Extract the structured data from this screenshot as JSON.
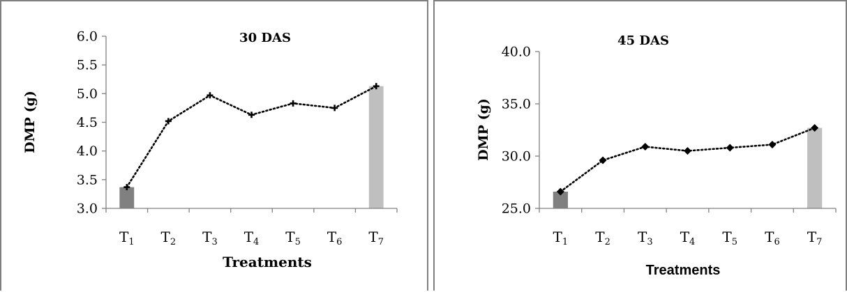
{
  "chart_data": [
    {
      "type": "line",
      "title": "30 DAS",
      "xlabel": "Treatments",
      "ylabel": "DMP (g)",
      "categories": [
        "T1",
        "T2",
        "T3",
        "T4",
        "T5",
        "T6",
        "T7"
      ],
      "category_labels": [
        {
          "base": "T",
          "sub": "1"
        },
        {
          "base": "T",
          "sub": "2"
        },
        {
          "base": "T",
          "sub": "3"
        },
        {
          "base": "T",
          "sub": "4"
        },
        {
          "base": "T",
          "sub": "5"
        },
        {
          "base": "T",
          "sub": "6"
        },
        {
          "base": "T",
          "sub": "7"
        }
      ],
      "series": [
        {
          "values": [
            3.37,
            4.52,
            4.97,
            4.63,
            4.83,
            4.75,
            5.13
          ],
          "marker": "plus",
          "line_style": "dotted"
        }
      ],
      "highlight_bars": [
        {
          "category_index": 0,
          "value": 3.37,
          "color": "#808080"
        },
        {
          "category_index": 6,
          "value": 5.13,
          "color": "#bfbfbf"
        }
      ],
      "ylim": [
        3.0,
        6.0
      ],
      "yticks": [
        "3.0",
        "3.5",
        "4.0",
        "4.5",
        "5.0",
        "5.5",
        "6.0"
      ],
      "grid": false,
      "legend": "none"
    },
    {
      "type": "line",
      "title": "45 DAS",
      "xlabel": "Treatments",
      "ylabel": "DMP (g)",
      "categories": [
        "T1",
        "T2",
        "T3",
        "T4",
        "T5",
        "T6",
        "T7"
      ],
      "category_labels": [
        {
          "base": "T",
          "sub": "1"
        },
        {
          "base": "T",
          "sub": "2"
        },
        {
          "base": "T",
          "sub": "3"
        },
        {
          "base": "T",
          "sub": "4"
        },
        {
          "base": "T",
          "sub": "5"
        },
        {
          "base": "T",
          "sub": "6"
        },
        {
          "base": "T",
          "sub": "7"
        }
      ],
      "series": [
        {
          "values": [
            26.6,
            29.6,
            30.9,
            30.5,
            30.8,
            31.1,
            32.7
          ],
          "marker": "diamond",
          "line_style": "dotted"
        }
      ],
      "highlight_bars": [
        {
          "category_index": 0,
          "value": 26.6,
          "color": "#808080"
        },
        {
          "category_index": 6,
          "value": 32.7,
          "color": "#bfbfbf"
        }
      ],
      "ylim": [
        25.0,
        40.0
      ],
      "yticks": [
        "25.0",
        "30.0",
        "35.0",
        "40.0"
      ],
      "grid": false,
      "legend": "none"
    }
  ]
}
